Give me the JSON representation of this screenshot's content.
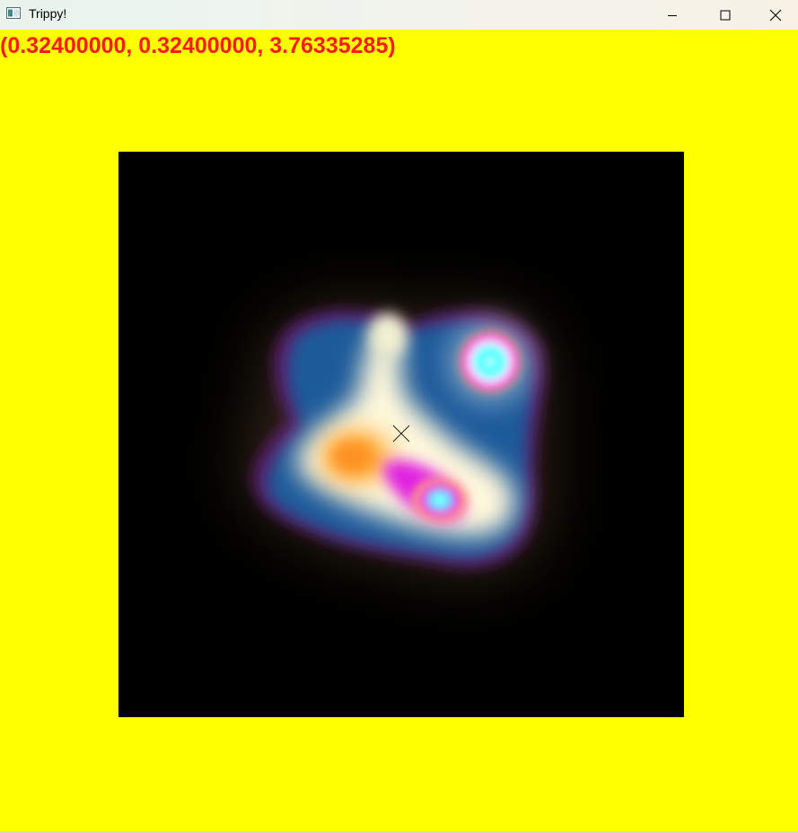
{
  "window": {
    "title": "Trippy!",
    "icon": "app-window-icon",
    "controls": {
      "minimize": "minimize-icon",
      "maximize": "maximize-icon",
      "close": "close-icon"
    }
  },
  "overlay": {
    "coordinates_text": "(0.32400000, 0.32400000, 3.76335285)",
    "text_color": "#ff1a1a"
  },
  "canvas": {
    "background_color": "#ffff00",
    "viewport_background": "#000000",
    "cursor": "crosshair-x-icon"
  }
}
